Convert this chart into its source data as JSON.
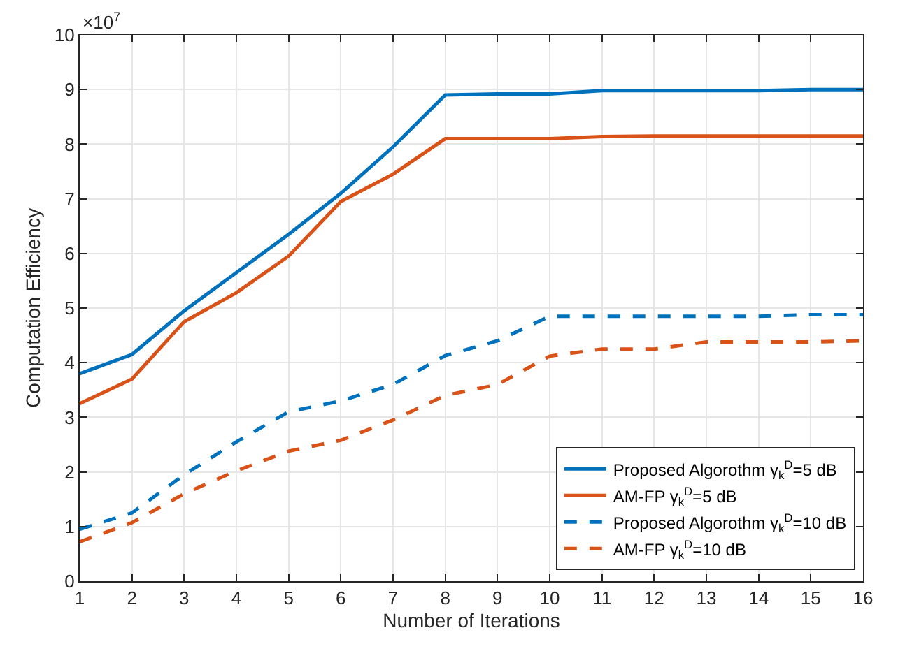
{
  "chart_data": {
    "type": "line",
    "xlabel": "Number of Iterations",
    "ylabel": "Computation Efficiency",
    "x": [
      1,
      2,
      3,
      4,
      5,
      6,
      7,
      8,
      9,
      10,
      11,
      12,
      13,
      14,
      15,
      16
    ],
    "series": [
      {
        "name": "Proposed Algorothm γ$_{k}$$^{D}$=5 dB",
        "color": "#0072bd",
        "line_style": "solid",
        "values": [
          3.8,
          4.15,
          4.95,
          5.65,
          6.35,
          7.1,
          7.95,
          8.9,
          8.92,
          8.92,
          8.98,
          8.98,
          8.98,
          8.98,
          9.0,
          9.0
        ]
      },
      {
        "name": "AM-FP γ$_{k}$$^{D}$=5 dB",
        "color": "#d95319",
        "line_style": "solid",
        "values": [
          3.25,
          3.7,
          4.75,
          5.28,
          5.95,
          6.95,
          7.45,
          8.1,
          8.1,
          8.1,
          8.14,
          8.15,
          8.15,
          8.15,
          8.15,
          8.15
        ]
      },
      {
        "name": "Proposed Algorothm γ$_{k}$$^{D}$=10 dB",
        "color": "#0072bd",
        "line_style": "dashed",
        "values": [
          0.95,
          1.25,
          1.95,
          2.55,
          3.1,
          3.3,
          3.6,
          4.13,
          4.4,
          4.85,
          4.85,
          4.85,
          4.85,
          4.85,
          4.88,
          4.88
        ]
      },
      {
        "name": "AM-FP γ$_{k}$$^{D}$=10 dB",
        "color": "#d95319",
        "line_style": "dashed",
        "values": [
          0.72,
          1.07,
          1.6,
          2.02,
          2.38,
          2.58,
          2.95,
          3.4,
          3.6,
          4.12,
          4.25,
          4.25,
          4.38,
          4.38,
          4.38,
          4.4
        ]
      }
    ],
    "xlim": [
      1,
      16
    ],
    "xticks": [
      1,
      2,
      3,
      4,
      5,
      6,
      7,
      8,
      9,
      10,
      11,
      12,
      13,
      14,
      15,
      16
    ],
    "ylim": [
      0,
      10
    ],
    "yticks": [
      0,
      1,
      2,
      3,
      4,
      5,
      6,
      7,
      8,
      9,
      10
    ],
    "annotations": [
      "×10$^{7}$"
    ],
    "grid": true,
    "legend": "bottom right",
    "marker": "none"
  }
}
